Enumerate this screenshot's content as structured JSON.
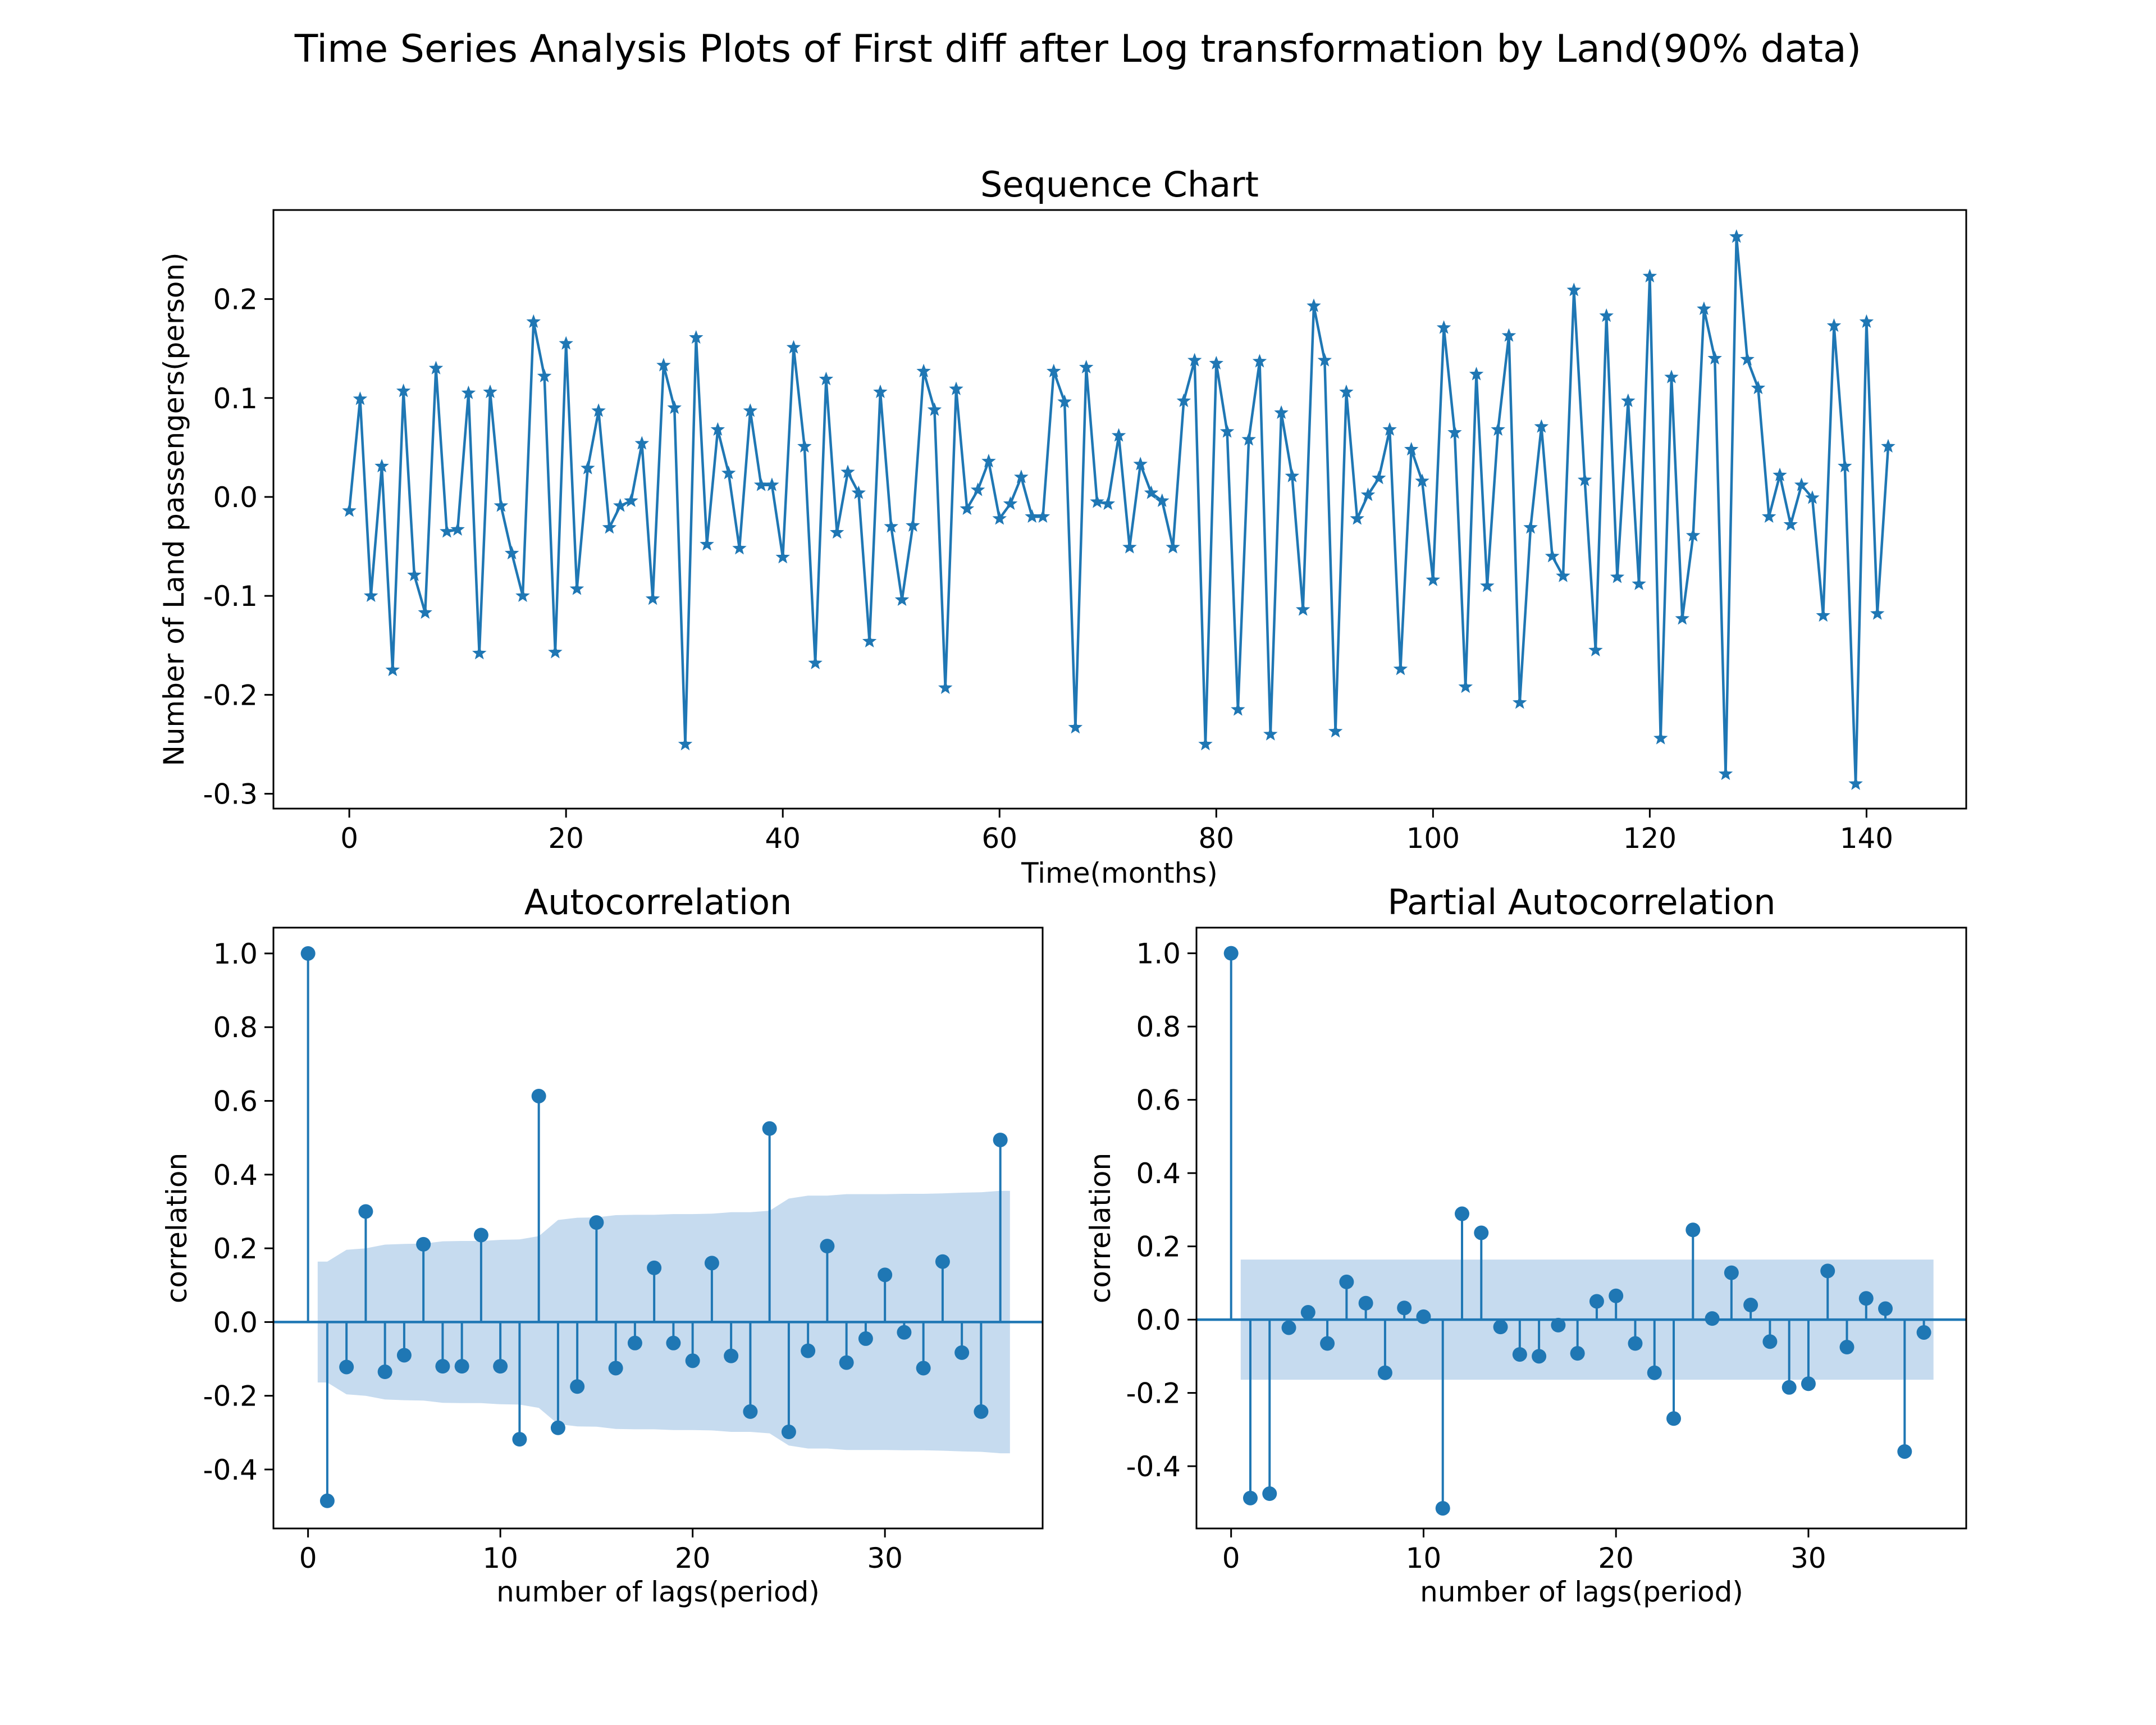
{
  "figure": {
    "title": "Time Series Analysis Plots of First diff after Log transformation by Land(90% data)"
  },
  "colors": {
    "series": "#1f77b4",
    "confidence_band": "#c6dbef",
    "axes": "#000000",
    "background": "#ffffff"
  },
  "chart_data": [
    {
      "type": "line",
      "title": "Sequence Chart",
      "xlabel": "Time(months)",
      "ylabel": "Number of Land passengers(person)",
      "marker": "star",
      "xlim": [
        -7,
        149.2
      ],
      "ylim": [
        -0.315,
        0.29
      ],
      "xticks": [
        0,
        20,
        40,
        60,
        80,
        100,
        120,
        140
      ],
      "yticks": [
        -0.3,
        -0.2,
        -0.1,
        0.0,
        0.1,
        0.2
      ],
      "ytick_labels": [
        "-0.3",
        "-0.2",
        "-0.1",
        "0.0",
        "0.1",
        "0.2"
      ],
      "grid": false,
      "y": [
        -0.014,
        0.099,
        -0.1,
        0.031,
        -0.175,
        0.107,
        -0.079,
        -0.117,
        0.13,
        -0.035,
        -0.033,
        0.105,
        -0.158,
        0.106,
        -0.009,
        -0.057,
        -0.1,
        0.177,
        0.122,
        -0.157,
        0.155,
        -0.093,
        0.029,
        0.087,
        -0.031,
        -0.009,
        -0.004,
        0.054,
        -0.103,
        0.133,
        0.09,
        -0.25,
        0.161,
        -0.048,
        0.068,
        0.024,
        -0.052,
        0.087,
        0.012,
        0.012,
        -0.061,
        0.151,
        0.051,
        -0.168,
        0.119,
        -0.036,
        0.025,
        0.004,
        -0.146,
        0.106,
        -0.03,
        -0.104,
        -0.029,
        0.127,
        0.088,
        -0.193,
        0.109,
        -0.012,
        0.007,
        0.036,
        -0.022,
        -0.007,
        0.02,
        -0.02,
        -0.02,
        0.127,
        0.096,
        -0.233,
        0.131,
        -0.005,
        -0.007,
        0.062,
        -0.051,
        0.033,
        0.004,
        -0.004,
        -0.051,
        0.097,
        0.138,
        -0.25,
        0.135,
        0.066,
        -0.215,
        0.058,
        0.137,
        -0.24,
        0.085,
        0.021,
        -0.114,
        0.193,
        0.138,
        -0.237,
        0.106,
        -0.022,
        0.002,
        0.019,
        0.068,
        -0.174,
        0.048,
        0.016,
        -0.084,
        0.171,
        0.065,
        -0.192,
        0.124,
        -0.09,
        0.068,
        0.163,
        -0.208,
        -0.031,
        0.071,
        -0.06,
        -0.08,
        0.209,
        0.017,
        -0.155,
        0.183,
        -0.081,
        0.097,
        -0.088,
        0.223,
        -0.244,
        0.121,
        -0.123,
        -0.039,
        0.19,
        0.14,
        -0.28,
        0.263,
        0.139,
        0.11,
        -0.02,
        0.022,
        -0.028,
        0.012,
        -0.001,
        -0.12,
        0.173,
        0.031,
        -0.29,
        0.177,
        -0.118,
        0.051
      ]
    },
    {
      "type": "stem",
      "title": "Autocorrelation",
      "xlabel": "number of lags(period)",
      "ylabel": "correlation",
      "xlim": [
        -1.8,
        38.2
      ],
      "ylim": [
        -0.56,
        1.07
      ],
      "xticks": [
        0,
        10,
        20,
        30
      ],
      "yticks": [
        -0.4,
        -0.2,
        0.0,
        0.2,
        0.4,
        0.6,
        0.8,
        1.0
      ],
      "ytick_labels": [
        "-0.4",
        "-0.2",
        "0.0",
        "0.2",
        "0.4",
        "0.6",
        "0.8",
        "1.0"
      ],
      "grid": false,
      "values": [
        1.0,
        -0.485,
        -0.122,
        0.3,
        -0.135,
        -0.09,
        0.211,
        -0.12,
        -0.12,
        0.236,
        -0.12,
        -0.318,
        0.613,
        -0.287,
        -0.175,
        0.27,
        -0.125,
        -0.057,
        0.147,
        -0.057,
        -0.105,
        0.16,
        -0.092,
        -0.243,
        0.525,
        -0.298,
        -0.078,
        0.206,
        -0.11,
        -0.045,
        0.128,
        -0.028,
        -0.125,
        0.164,
        -0.083,
        -0.243,
        0.494
      ],
      "confidence_band": {
        "lags": [
          0.5,
          1,
          2,
          3,
          4,
          5,
          6,
          7,
          8,
          9,
          10,
          11,
          12,
          13,
          14,
          15,
          16,
          17,
          18,
          19,
          20,
          21,
          22,
          23,
          24,
          25,
          26,
          27,
          28,
          29,
          30,
          31,
          32,
          33,
          34,
          35,
          36,
          36.5
        ],
        "halfwidth": [
          0.164,
          0.164,
          0.196,
          0.2,
          0.21,
          0.212,
          0.213,
          0.219,
          0.22,
          0.22,
          0.223,
          0.224,
          0.233,
          0.277,
          0.283,
          0.284,
          0.29,
          0.291,
          0.291,
          0.293,
          0.293,
          0.294,
          0.298,
          0.298,
          0.302,
          0.335,
          0.343,
          0.343,
          0.347,
          0.347,
          0.347,
          0.348,
          0.348,
          0.349,
          0.351,
          0.352,
          0.356,
          0.356
        ]
      }
    },
    {
      "type": "stem",
      "title": "Partial Autocorrelation",
      "xlabel": "number of lags(period)",
      "ylabel": "correlation",
      "xlim": [
        -1.8,
        38.2
      ],
      "ylim": [
        -0.57,
        1.07
      ],
      "xticks": [
        0,
        10,
        20,
        30
      ],
      "yticks": [
        -0.4,
        -0.2,
        0.0,
        0.2,
        0.4,
        0.6,
        0.8,
        1.0
      ],
      "ytick_labels": [
        "-0.4",
        "-0.2",
        "0.0",
        "0.2",
        "0.4",
        "0.6",
        "0.8",
        "1.0"
      ],
      "grid": false,
      "values": [
        1.0,
        -0.487,
        -0.475,
        -0.022,
        0.02,
        -0.065,
        0.103,
        0.045,
        -0.145,
        0.032,
        0.008,
        -0.515,
        0.289,
        0.237,
        -0.02,
        -0.095,
        -0.1,
        -0.015,
        -0.092,
        0.05,
        0.065,
        -0.065,
        -0.145,
        -0.27,
        0.245,
        0.003,
        0.128,
        0.04,
        -0.06,
        -0.185,
        -0.175,
        0.133,
        -0.075,
        0.058,
        0.03,
        -0.36,
        -0.035
      ],
      "confidence_band": {
        "lags": [
          0.5,
          36.5
        ],
        "halfwidth": [
          0.164,
          0.164
        ]
      }
    }
  ]
}
